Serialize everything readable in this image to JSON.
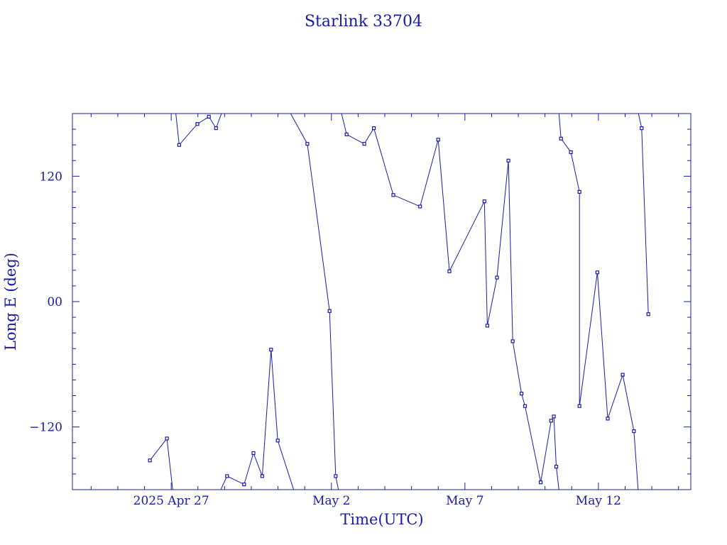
{
  "chart_data": {
    "type": "line",
    "title": "Starlink 33704",
    "xlabel": "Time(UTC)",
    "ylabel": "Long E (deg)",
    "x_start_date": "2025-04-23",
    "xlim": [
      -0.27,
      22.89
    ],
    "ylim": [
      -180,
      180
    ],
    "x_ticks": [
      {
        "day": 3.43,
        "label": "2025 Apr 27"
      },
      {
        "day": 9.43,
        "label": "May  2"
      },
      {
        "day": 14.43,
        "label": "May  7"
      },
      {
        "day": 19.43,
        "label": "May 12"
      }
    ],
    "y_ticks": [
      {
        "value": 120,
        "label": "120"
      },
      {
        "value": 0,
        "label": "00"
      },
      {
        "value": -120,
        "label": "−120"
      }
    ],
    "series": [
      {
        "name": "Long E",
        "color": "#1a1aa0",
        "points": [
          [
            2.63,
            -152
          ],
          [
            3.27,
            -131
          ],
          [
            3.49,
            -181
          ],
          null,
          [
            3.6,
            181
          ],
          [
            3.73,
            150
          ],
          [
            4.41,
            170
          ],
          [
            4.84,
            177
          ],
          [
            5.11,
            166
          ],
          [
            5.34,
            182
          ],
          null,
          [
            5.27,
            -181
          ],
          [
            5.52,
            -167
          ],
          [
            6.16,
            -175
          ],
          [
            6.51,
            -145
          ],
          [
            6.84,
            -167
          ],
          [
            7.17,
            -46
          ],
          [
            7.42,
            -133
          ],
          [
            8.03,
            -181
          ],
          null,
          [
            7.88,
            181
          ],
          [
            8.53,
            151
          ],
          [
            9.36,
            -9
          ],
          [
            9.59,
            -167
          ],
          [
            9.7,
            -181
          ],
          null,
          [
            9.8,
            181
          ],
          [
            10.0,
            160
          ],
          [
            10.66,
            151
          ],
          [
            11.02,
            166
          ],
          [
            11.75,
            102
          ],
          [
            12.75,
            91
          ],
          [
            13.43,
            155
          ],
          [
            13.85,
            29
          ],
          [
            15.16,
            96
          ],
          [
            15.27,
            -23
          ],
          [
            15.63,
            23
          ],
          [
            16.06,
            135
          ],
          [
            16.22,
            -38
          ],
          [
            16.55,
            -88
          ],
          [
            16.68,
            -100
          ],
          [
            17.27,
            -173
          ],
          [
            17.66,
            -114
          ],
          [
            17.76,
            -110
          ],
          [
            17.85,
            -158
          ],
          [
            17.96,
            -182
          ],
          null,
          [
            17.95,
            181
          ],
          [
            18.03,
            156
          ],
          [
            18.4,
            143
          ],
          [
            18.72,
            105
          ],
          [
            18.72,
            -100
          ],
          [
            19.39,
            28
          ],
          [
            19.78,
            -112
          ],
          [
            20.34,
            -70
          ],
          [
            20.76,
            -124
          ],
          [
            20.92,
            -181
          ],
          null,
          [
            20.92,
            181
          ],
          [
            21.05,
            166
          ],
          [
            21.3,
            -12
          ]
        ]
      }
    ],
    "grid": false,
    "marker": "square"
  }
}
